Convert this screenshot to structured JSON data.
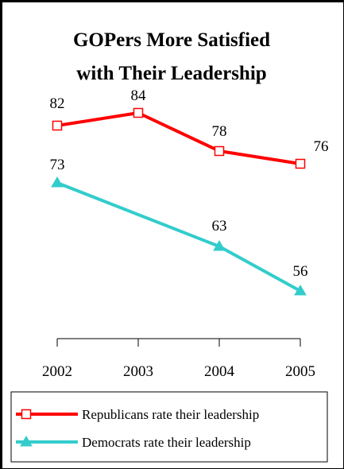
{
  "chart_data": {
    "type": "line",
    "title_lines": [
      "GOPers More Satisfied",
      "with Their Leadership"
    ],
    "categories": [
      "2002",
      "2003",
      "2004",
      "2005"
    ],
    "ylim": [
      40,
      100
    ],
    "grid": false,
    "legend_placement": "bottom",
    "series": [
      {
        "name": "Republicans rate their leadership",
        "values": [
          82,
          84,
          78,
          76
        ],
        "labels": [
          "82",
          "84",
          "78",
          "76"
        ],
        "color": "#ff0000",
        "marker": "open-square"
      },
      {
        "name": "Democrats rate their leadership",
        "values": [
          73,
          null,
          63,
          56
        ],
        "labels": [
          "73",
          "",
          "63",
          "56"
        ],
        "color": "#33cccc",
        "marker": "filled-triangle"
      }
    ]
  }
}
